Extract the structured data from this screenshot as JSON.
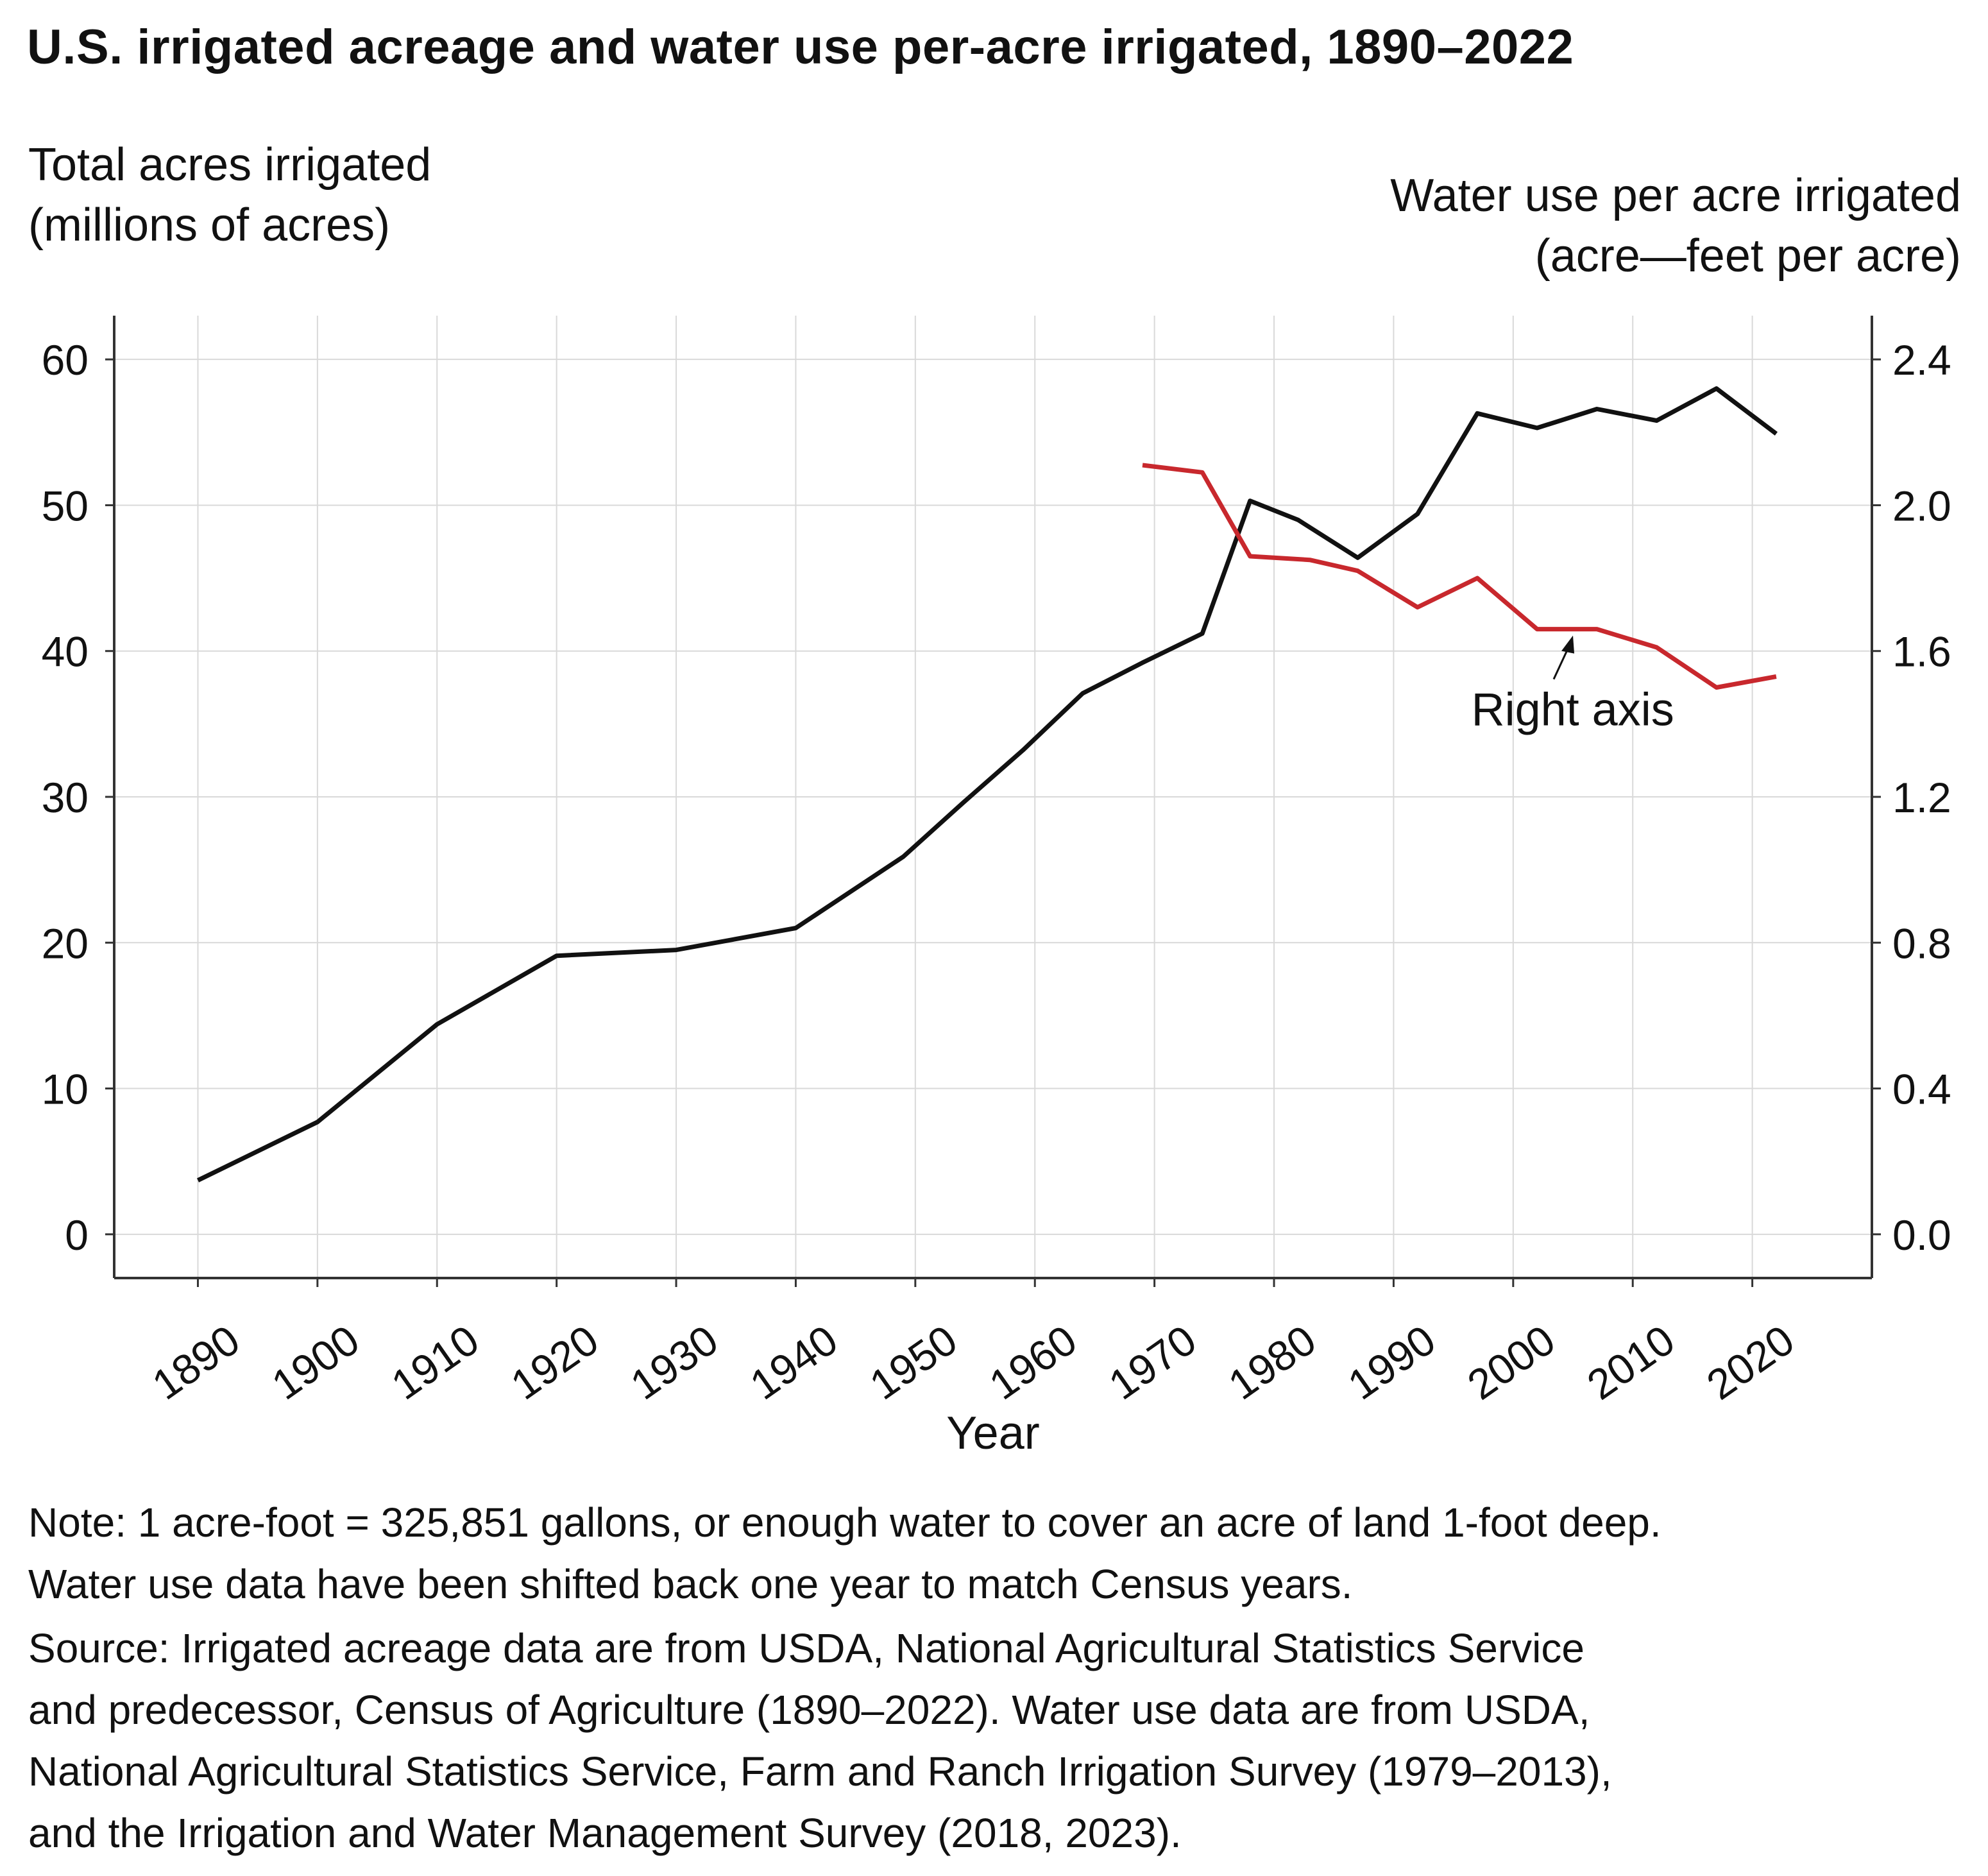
{
  "title": "U.S. irrigated acreage and water use per-acre irrigated, 1890–2022",
  "left_axis_label": {
    "line1": "Total acres irrigated",
    "line2": "(millions of acres)"
  },
  "right_axis_label": {
    "line1": "Water use per acre irrigated",
    "line2": "(acre—feet per acre)"
  },
  "annotation": "Right axis",
  "note": {
    "line1": "Note: 1 acre-foot = 325,851 gallons, or enough water to cover an acre of land 1-foot deep.",
    "line2": "Water use data have been shifted back one year to match Census years."
  },
  "source": {
    "line1": "Source: Irrigated acreage data are from USDA, National Agricultural Statistics Service",
    "line2": "and predecessor, Census of Agriculture (1890–2022). Water use data are from USDA,",
    "line3": "National Agricultural Statistics Service, Farm and Ranch Irrigation Survey (1979–2013),",
    "line4": "and the Irrigation and Water Management Survey (2018, 2023)."
  },
  "colors": {
    "acres": "#111111",
    "water": "#c8282d",
    "grid": "#d9d9d9",
    "axis": "#333333"
  },
  "chart_data": {
    "type": "line",
    "title": "U.S. irrigated acreage and water use per-acre irrigated, 1890–2022",
    "xlabel": "Year",
    "ylabel_left": "Total acres irrigated (millions of acres)",
    "ylabel_right": "Water use per acre irrigated (acre—feet per acre)",
    "xlim": [
      1883,
      2030
    ],
    "x_ticks": [
      1890,
      1900,
      1910,
      1920,
      1930,
      1940,
      1950,
      1960,
      1970,
      1980,
      1990,
      2000,
      2010,
      2020
    ],
    "ylim_left": [
      -3,
      63
    ],
    "y_ticks_left": [
      0,
      10,
      20,
      30,
      40,
      50,
      60
    ],
    "ylim_right": [
      -0.12,
      2.52
    ],
    "y_ticks_right": [
      "0.0",
      "0.4",
      "0.8",
      "1.2",
      "1.6",
      "2.0",
      "2.4"
    ],
    "grid": true,
    "series": [
      {
        "name": "Total acres irrigated",
        "axis": "left",
        "x": [
          1890,
          1900,
          1910,
          1920,
          1930,
          1940,
          1949,
          1954,
          1959,
          1964,
          1969,
          1974,
          1978,
          1982,
          1987,
          1992,
          1997,
          2002,
          2007,
          2012,
          2017,
          2022
        ],
        "values": [
          3.7,
          7.7,
          14.4,
          19.1,
          19.5,
          21.0,
          25.9,
          29.6,
          33.2,
          37.1,
          39.2,
          41.2,
          50.3,
          49.0,
          46.4,
          49.4,
          56.3,
          55.3,
          56.6,
          55.8,
          58.0,
          54.9
        ]
      },
      {
        "name": "Water use per acre irrigated",
        "axis": "right",
        "x": [
          1969,
          1974,
          1978,
          1983,
          1987,
          1992,
          1997,
          2002,
          2007,
          2012,
          2017,
          2022
        ],
        "values": [
          2.11,
          2.09,
          1.86,
          1.85,
          1.82,
          1.72,
          1.8,
          1.66,
          1.66,
          1.61,
          1.5,
          1.53
        ]
      }
    ]
  }
}
